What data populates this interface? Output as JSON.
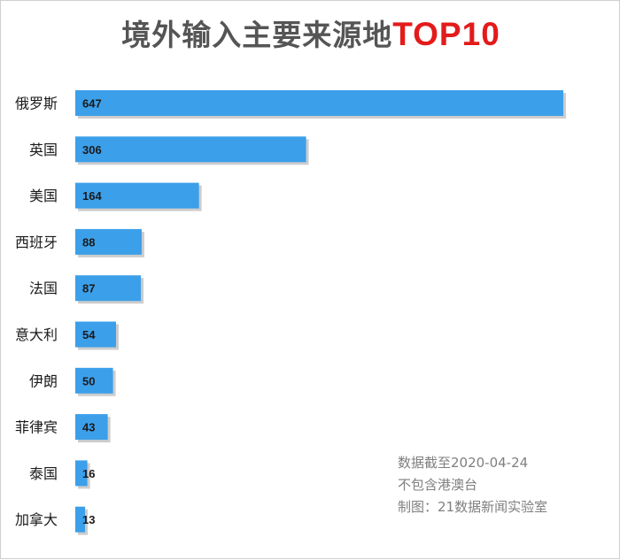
{
  "chart_data": {
    "type": "bar",
    "orientation": "horizontal",
    "title_main": "境外输入主要来源地",
    "title_accent": "TOP10",
    "categories": [
      "俄罗斯",
      "英国",
      "美国",
      "西班牙",
      "法国",
      "意大利",
      "伊朗",
      "菲律宾",
      "泰国",
      "加拿大"
    ],
    "values": [
      647,
      306,
      164,
      88,
      87,
      54,
      50,
      43,
      16,
      13
    ],
    "xlim": [
      0,
      647
    ],
    "grid": false,
    "legend": "none",
    "colors": {
      "bar": "#3c9fe9",
      "bar_shadow": "#b8b8b8",
      "label": "#1a1a1a",
      "title": "#555555",
      "title_accent": "#e31b1b"
    }
  },
  "footnotes": [
    "数据截至2020-04-24",
    "不包含港澳台",
    "制图：21数据新闻实验室"
  ]
}
